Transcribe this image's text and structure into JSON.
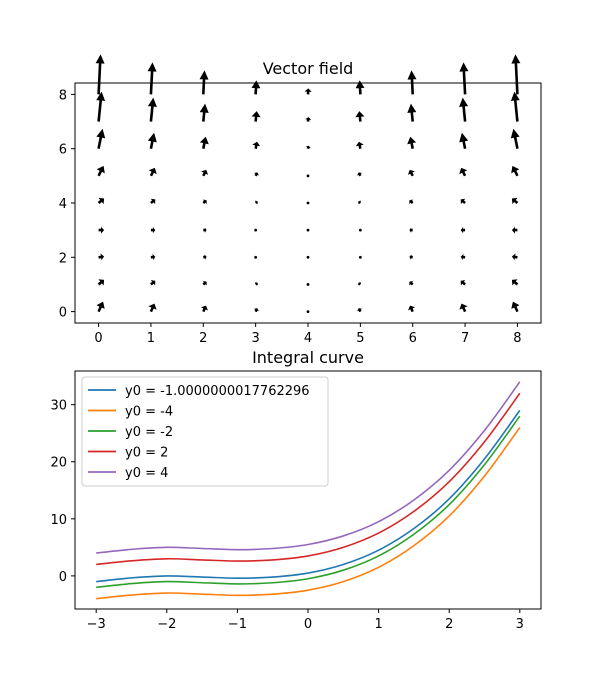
{
  "chart_data": [
    {
      "type": "quiver",
      "title": "Vector field",
      "xlabel": "",
      "ylabel": "",
      "xlim": [
        -0.45,
        8.45
      ],
      "ylim": [
        -0.42,
        8.42
      ],
      "xticks": [
        "0",
        "1",
        "2",
        "3",
        "4",
        "5",
        "6",
        "7",
        "8"
      ],
      "yticks": [
        "0",
        "2",
        "4",
        "6",
        "8"
      ],
      "grid_x": [
        0,
        1,
        2,
        3,
        4,
        5,
        6,
        7,
        8
      ],
      "grid_y": [
        0,
        1,
        2,
        3,
        4,
        5,
        6,
        7,
        8
      ],
      "row_vectors": [
        {
          "y": 0,
          "u": -0.45,
          "v": 1.0
        },
        {
          "y": 1,
          "u": -0.55,
          "v": 0.45
        },
        {
          "y": 2,
          "u": -0.55,
          "v": 0.08
        },
        {
          "y": 3,
          "u": -0.55,
          "v": 0.0
        },
        {
          "y": 4,
          "u": -0.55,
          "v": 0.45
        },
        {
          "y": 5,
          "u": -0.5,
          "v": 1.0
        },
        {
          "y": 6,
          "u": -0.4,
          "v": 2.0
        },
        {
          "y": 7,
          "u": -0.3,
          "v": 3.0
        },
        {
          "y": 8,
          "u": -0.2,
          "v": 4.0
        }
      ],
      "column_scale": [
        1.0,
        0.8,
        0.6,
        0.35,
        0.15,
        0.35,
        0.6,
        0.8,
        1.0
      ],
      "column_u_sign": [
        1,
        1,
        1,
        1,
        1,
        -1,
        -1,
        -1,
        -1
      ],
      "color": "#000000"
    },
    {
      "type": "line",
      "title": "Integral curve",
      "xlabel": "",
      "ylabel": "",
      "xlim": [
        -3.3,
        3.3
      ],
      "ylim": [
        -5.8,
        35.9
      ],
      "xticks": [
        "−3",
        "−2",
        "−1",
        "0",
        "1",
        "2",
        "3"
      ],
      "yticks": [
        "0",
        "10",
        "20",
        "30"
      ],
      "legend_position": "top-left",
      "series": [
        {
          "name": "y0 = -1.0000000017762296",
          "y0": -1.0000000017762296,
          "color": "#1f77b4"
        },
        {
          "name": "y0 = -4",
          "y0": -4,
          "color": "#ff7f0e"
        },
        {
          "name": "y0 = -2",
          "y0": -2,
          "color": "#2ca02c"
        },
        {
          "name": "y0 = 2",
          "y0": 2,
          "color": "#d62728"
        },
        {
          "name": "y0 = 4",
          "y0": 4,
          "color": "#9467bd"
        }
      ],
      "x": [
        -3,
        -2.5,
        -2,
        -1.5,
        -1,
        -0.5,
        0,
        0.5,
        1,
        1.5,
        2,
        2.5,
        3
      ],
      "series_values": [
        [
          -1.0,
          -0.35,
          0.0,
          -0.2,
          -0.4,
          -0.2,
          0.5,
          2.0,
          4.5,
          8.3,
          13.5,
          20.5,
          29.0
        ],
        [
          -4.0,
          -3.35,
          -3.0,
          -3.2,
          -3.4,
          -3.2,
          -2.5,
          -1.0,
          1.5,
          5.3,
          10.5,
          17.5,
          26.0
        ],
        [
          -2.0,
          -1.35,
          -1.0,
          -1.2,
          -1.4,
          -1.2,
          -0.5,
          1.0,
          3.5,
          7.3,
          12.5,
          19.5,
          28.0
        ],
        [
          2.0,
          2.65,
          3.0,
          2.8,
          2.6,
          2.8,
          3.5,
          5.0,
          7.5,
          11.3,
          16.5,
          23.5,
          32.0
        ],
        [
          4.0,
          4.65,
          5.0,
          4.8,
          4.6,
          4.8,
          5.5,
          7.0,
          9.5,
          13.3,
          18.5,
          25.5,
          34.0
        ]
      ]
    }
  ]
}
